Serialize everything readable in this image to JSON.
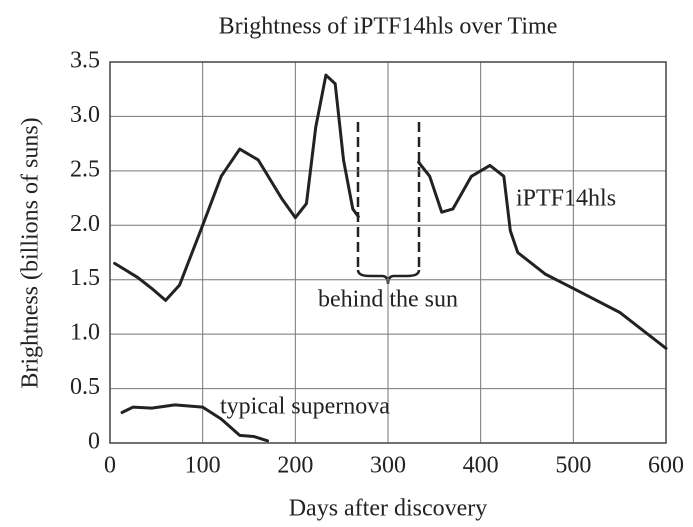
{
  "chart_data": {
    "type": "line",
    "title": "Brightness of iPTF14hls over Time",
    "xlabel": "Days after discovery",
    "ylabel": "Brightness (billions of suns)",
    "annotations": [
      "behind the sun"
    ],
    "xlim": [
      0,
      600
    ],
    "xticks": [
      0,
      100,
      200,
      300,
      400,
      500,
      600
    ],
    "ylim": [
      0,
      3.5
    ],
    "yticks": [
      0,
      0.5,
      {
        "value": 1,
        "label": "1.0"
      },
      1.5,
      {
        "value": 2,
        "label": "2.0"
      },
      2.5,
      {
        "value": 3,
        "label": "3.0"
      },
      3.5
    ],
    "grid": true,
    "series": [
      {
        "name": "iPTF14hls",
        "color": "#222222",
        "x": [
          5,
          30,
          45,
          60,
          75,
          100,
          120,
          140,
          160,
          185,
          200,
          212,
          222,
          233,
          243,
          252,
          262,
          268,
          null,
          333,
          345,
          358,
          370,
          390,
          410,
          425,
          432,
          440,
          470,
          500,
          550,
          600
        ],
        "values": [
          1.65,
          1.52,
          1.42,
          1.31,
          1.45,
          2.0,
          2.45,
          2.7,
          2.6,
          2.25,
          2.07,
          2.2,
          2.9,
          3.38,
          3.3,
          2.6,
          2.15,
          2.08,
          null,
          2.58,
          2.45,
          2.12,
          2.15,
          2.45,
          2.55,
          2.45,
          1.95,
          1.75,
          1.55,
          1.42,
          1.2,
          0.87
        ]
      },
      {
        "name": "typical supernova",
        "color": "#222222",
        "x": [
          13,
          25,
          45,
          70,
          100,
          120,
          140,
          155,
          170
        ],
        "values": [
          0.28,
          0.33,
          0.32,
          0.35,
          0.33,
          0.22,
          0.07,
          0.06,
          0.02
        ]
      }
    ]
  }
}
